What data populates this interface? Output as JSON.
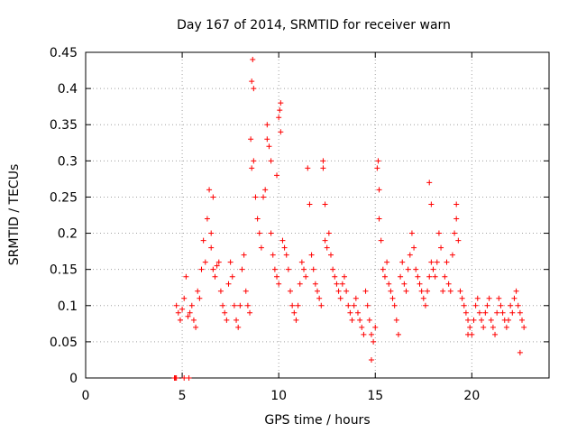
{
  "chart_data": {
    "type": "scatter",
    "title": "Day 167 of 2014, SRMTID for receiver warn",
    "xlabel": "GPS time / hours",
    "ylabel": "SRMTID / TECUs",
    "xlim": [
      0,
      24
    ],
    "ylim": [
      0,
      0.45
    ],
    "xticks": [
      0,
      5,
      10,
      15,
      20
    ],
    "xtick_labels": [
      "0",
      "5",
      "10",
      "15",
      "20"
    ],
    "yticks": [
      0,
      0.05,
      0.1,
      0.15,
      0.2,
      0.25,
      0.3,
      0.35,
      0.4,
      0.45
    ],
    "ytick_labels": [
      "0",
      "0.05",
      "0.1",
      "0.15",
      "0.2",
      "0.25",
      "0.3",
      "0.35",
      "0.4",
      "0.45"
    ],
    "grid": true,
    "marker": "+",
    "series_color": "#ff0000",
    "series": [
      {
        "name": "SRMTID",
        "x": [
          4.6,
          4.65,
          4.7,
          5.1,
          5.35,
          4.7,
          4.8,
          4.9,
          5.0,
          5.1,
          5.2,
          5.3,
          5.4,
          5.5,
          5.6,
          5.7,
          5.8,
          5.9,
          6.0,
          6.1,
          6.2,
          6.3,
          6.4,
          6.5,
          6.6,
          6.7,
          6.8,
          6.9,
          7.0,
          7.1,
          7.2,
          7.3,
          7.4,
          7.5,
          7.6,
          7.7,
          7.8,
          7.9,
          8.0,
          8.1,
          8.2,
          8.3,
          8.4,
          8.5,
          8.55,
          8.6,
          8.65,
          8.7,
          8.8,
          8.9,
          9.0,
          9.1,
          9.2,
          9.3,
          9.4,
          9.5,
          9.6,
          9.7,
          9.8,
          9.9,
          10.0,
          10.05,
          10.1,
          10.2,
          10.3,
          10.4,
          10.5,
          10.6,
          10.7,
          10.8,
          10.9,
          11.0,
          11.1,
          11.2,
          11.3,
          11.4,
          11.5,
          11.6,
          11.7,
          11.8,
          11.9,
          12.0,
          12.1,
          12.2,
          12.3,
          12.4,
          12.5,
          12.6,
          12.7,
          12.8,
          12.9,
          13.0,
          13.1,
          13.2,
          13.3,
          13.4,
          13.5,
          13.6,
          13.7,
          13.8,
          13.9,
          14.0,
          14.1,
          14.2,
          14.3,
          14.4,
          14.5,
          14.6,
          14.7,
          14.8,
          14.9,
          15.0,
          15.1,
          15.2,
          15.3,
          15.4,
          15.5,
          15.6,
          15.7,
          15.8,
          15.9,
          16.0,
          16.1,
          16.2,
          16.3,
          16.4,
          16.5,
          16.6,
          16.7,
          16.8,
          16.9,
          17.0,
          17.1,
          17.2,
          17.3,
          17.4,
          17.5,
          17.6,
          17.7,
          17.8,
          17.9,
          18.0,
          18.1,
          18.2,
          18.3,
          18.4,
          18.5,
          18.6,
          18.7,
          18.8,
          18.9,
          19.0,
          19.1,
          19.2,
          19.3,
          19.4,
          19.5,
          19.6,
          19.7,
          19.8,
          19.9,
          20.0,
          20.1,
          20.2,
          20.3,
          20.4,
          20.5,
          20.6,
          20.7,
          20.8,
          20.9,
          21.0,
          21.1,
          21.2,
          21.3,
          21.4,
          21.5,
          21.6,
          21.7,
          21.8,
          21.9,
          22.0,
          22.1,
          22.2,
          22.3,
          22.4,
          22.5,
          22.6,
          22.7,
          8.6,
          8.7,
          9.4,
          9.6,
          9.9,
          10.0,
          10.1,
          12.3,
          12.4,
          15.15,
          15.2,
          17.8,
          17.9,
          19.2,
          6.5,
          6.6,
          14.8,
          19.8,
          22.5
        ],
        "y": [
          0.0,
          0.0,
          0.0,
          0.0,
          0.0,
          0.1,
          0.09,
          0.08,
          0.095,
          0.11,
          0.14,
          0.085,
          0.09,
          0.1,
          0.08,
          0.07,
          0.12,
          0.11,
          0.15,
          0.19,
          0.16,
          0.22,
          0.26,
          0.18,
          0.15,
          0.14,
          0.155,
          0.16,
          0.12,
          0.1,
          0.09,
          0.08,
          0.13,
          0.16,
          0.14,
          0.1,
          0.08,
          0.07,
          0.1,
          0.15,
          0.17,
          0.12,
          0.1,
          0.09,
          0.33,
          0.29,
          0.44,
          0.3,
          0.25,
          0.22,
          0.2,
          0.18,
          0.25,
          0.26,
          0.35,
          0.32,
          0.2,
          0.17,
          0.15,
          0.14,
          0.13,
          0.37,
          0.38,
          0.19,
          0.18,
          0.17,
          0.15,
          0.12,
          0.1,
          0.09,
          0.08,
          0.1,
          0.13,
          0.16,
          0.15,
          0.14,
          0.29,
          0.24,
          0.17,
          0.15,
          0.13,
          0.12,
          0.11,
          0.1,
          0.3,
          0.19,
          0.18,
          0.2,
          0.17,
          0.15,
          0.14,
          0.13,
          0.12,
          0.11,
          0.13,
          0.14,
          0.12,
          0.1,
          0.09,
          0.08,
          0.1,
          0.11,
          0.09,
          0.08,
          0.07,
          0.06,
          0.12,
          0.1,
          0.08,
          0.06,
          0.05,
          0.07,
          0.29,
          0.26,
          0.19,
          0.15,
          0.14,
          0.16,
          0.13,
          0.12,
          0.11,
          0.1,
          0.08,
          0.06,
          0.14,
          0.16,
          0.13,
          0.12,
          0.15,
          0.17,
          0.2,
          0.18,
          0.15,
          0.14,
          0.13,
          0.12,
          0.11,
          0.1,
          0.12,
          0.14,
          0.16,
          0.15,
          0.14,
          0.16,
          0.2,
          0.18,
          0.12,
          0.14,
          0.16,
          0.13,
          0.12,
          0.17,
          0.2,
          0.24,
          0.19,
          0.12,
          0.11,
          0.1,
          0.09,
          0.08,
          0.07,
          0.06,
          0.08,
          0.1,
          0.11,
          0.09,
          0.08,
          0.07,
          0.09,
          0.1,
          0.11,
          0.08,
          0.07,
          0.06,
          0.09,
          0.11,
          0.1,
          0.09,
          0.08,
          0.07,
          0.08,
          0.1,
          0.09,
          0.11,
          0.12,
          0.1,
          0.09,
          0.08,
          0.07,
          0.41,
          0.4,
          0.33,
          0.3,
          0.28,
          0.36,
          0.34,
          0.29,
          0.24,
          0.3,
          0.22,
          0.27,
          0.24,
          0.22,
          0.2,
          0.25,
          0.025,
          0.06,
          0.035
        ]
      }
    ]
  }
}
